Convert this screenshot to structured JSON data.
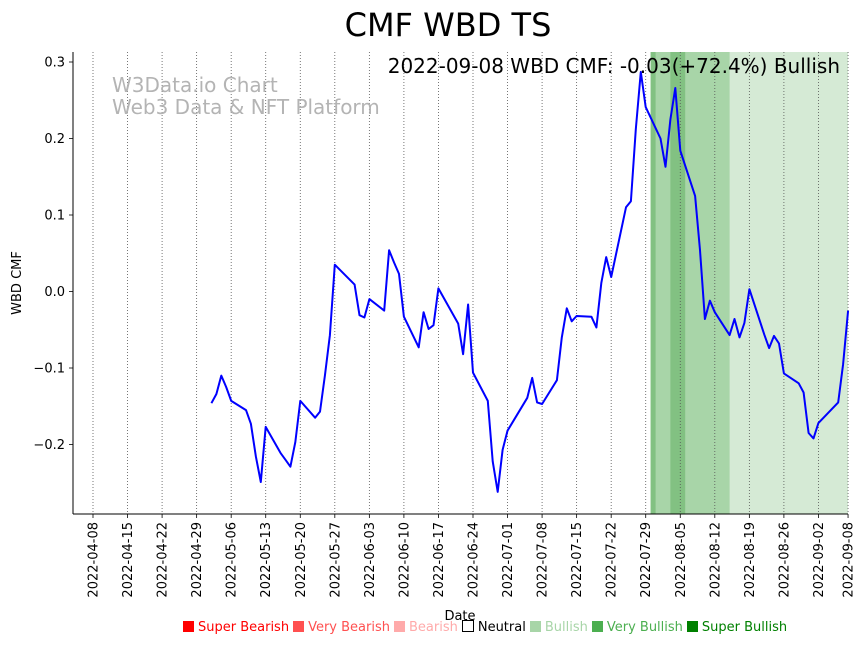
{
  "chart_data": {
    "type": "line",
    "title": "CMF WBD TS",
    "xlabel": "Date",
    "ylabel": "WBD CMF",
    "ylim": [
      -0.29,
      0.313
    ],
    "xlim": [
      "2022-04-04",
      "2022-09-08"
    ],
    "grid": "vertical dotted at x ticks",
    "annotation": "2022-09-08 WBD CMF: -0.03(+72.4%) Bullish",
    "watermark": [
      "W3Data.io Chart",
      "Web3 Data & NFT Platform"
    ],
    "yticks": [
      0.3,
      0.2,
      0.1,
      0.0,
      -0.1,
      -0.2
    ],
    "ytick_labels": [
      "0.3",
      "0.2",
      "0.1",
      "0.0",
      "−0.1",
      "−0.2"
    ],
    "xticks": [
      "2022-04-08",
      "2022-04-15",
      "2022-04-22",
      "2022-04-29",
      "2022-05-06",
      "2022-05-13",
      "2022-05-20",
      "2022-05-27",
      "2022-06-03",
      "2022-06-10",
      "2022-06-17",
      "2022-06-24",
      "2022-07-01",
      "2022-07-08",
      "2022-07-15",
      "2022-07-22",
      "2022-07-29",
      "2022-08-05",
      "2022-08-12",
      "2022-08-19",
      "2022-08-26",
      "2022-09-02",
      "2022-09-08"
    ],
    "series": [
      {
        "name": "WBD CMF",
        "color": "#0000ff",
        "points": [
          [
            "2022-05-02",
            -0.146
          ],
          [
            "2022-05-03",
            -0.134
          ],
          [
            "2022-05-04",
            -0.11
          ],
          [
            "2022-05-05",
            -0.125
          ],
          [
            "2022-05-06",
            -0.143
          ],
          [
            "2022-05-09",
            -0.155
          ],
          [
            "2022-05-10",
            -0.173
          ],
          [
            "2022-05-11",
            -0.216
          ],
          [
            "2022-05-12",
            -0.249
          ],
          [
            "2022-05-13",
            -0.177
          ],
          [
            "2022-05-16",
            -0.211
          ],
          [
            "2022-05-17",
            -0.22
          ],
          [
            "2022-05-18",
            -0.229
          ],
          [
            "2022-05-19",
            -0.197
          ],
          [
            "2022-05-20",
            -0.143
          ],
          [
            "2022-05-23",
            -0.165
          ],
          [
            "2022-05-24",
            -0.157
          ],
          [
            "2022-05-25",
            -0.11
          ],
          [
            "2022-05-26",
            -0.057
          ],
          [
            "2022-05-27",
            0.035
          ],
          [
            "2022-05-31",
            0.009
          ],
          [
            "2022-06-01",
            -0.031
          ],
          [
            "2022-06-02",
            -0.034
          ],
          [
            "2022-06-03",
            -0.01
          ],
          [
            "2022-06-06",
            -0.025
          ],
          [
            "2022-06-07",
            0.054
          ],
          [
            "2022-06-08",
            0.038
          ],
          [
            "2022-06-09",
            0.023
          ],
          [
            "2022-06-10",
            -0.033
          ],
          [
            "2022-06-13",
            -0.073
          ],
          [
            "2022-06-14",
            -0.027
          ],
          [
            "2022-06-15",
            -0.049
          ],
          [
            "2022-06-16",
            -0.044
          ],
          [
            "2022-06-17",
            0.004
          ],
          [
            "2022-06-21",
            -0.042
          ],
          [
            "2022-06-22",
            -0.082
          ],
          [
            "2022-06-23",
            -0.017
          ],
          [
            "2022-06-24",
            -0.106
          ],
          [
            "2022-06-27",
            -0.143
          ],
          [
            "2022-06-28",
            -0.222
          ],
          [
            "2022-06-29",
            -0.262
          ],
          [
            "2022-06-30",
            -0.207
          ],
          [
            "2022-07-01",
            -0.182
          ],
          [
            "2022-07-05",
            -0.139
          ],
          [
            "2022-07-06",
            -0.113
          ],
          [
            "2022-07-07",
            -0.145
          ],
          [
            "2022-07-08",
            -0.147
          ],
          [
            "2022-07-11",
            -0.116
          ],
          [
            "2022-07-12",
            -0.06
          ],
          [
            "2022-07-13",
            -0.022
          ],
          [
            "2022-07-14",
            -0.039
          ],
          [
            "2022-07-15",
            -0.032
          ],
          [
            "2022-07-18",
            -0.033
          ],
          [
            "2022-07-19",
            -0.047
          ],
          [
            "2022-07-20",
            0.011
          ],
          [
            "2022-07-21",
            0.045
          ],
          [
            "2022-07-22",
            0.019
          ],
          [
            "2022-07-25",
            0.11
          ],
          [
            "2022-07-26",
            0.118
          ],
          [
            "2022-07-27",
            0.212
          ],
          [
            "2022-07-28",
            0.287
          ],
          [
            "2022-07-29",
            0.241
          ],
          [
            "2022-08-01",
            0.2
          ],
          [
            "2022-08-02",
            0.163
          ],
          [
            "2022-08-03",
            0.225
          ],
          [
            "2022-08-04",
            0.266
          ],
          [
            "2022-08-05",
            0.184
          ],
          [
            "2022-08-08",
            0.125
          ],
          [
            "2022-08-09",
            0.054
          ],
          [
            "2022-08-10",
            -0.036
          ],
          [
            "2022-08-11",
            -0.012
          ],
          [
            "2022-08-12",
            -0.027
          ],
          [
            "2022-08-15",
            -0.057
          ],
          [
            "2022-08-16",
            -0.036
          ],
          [
            "2022-08-17",
            -0.06
          ],
          [
            "2022-08-18",
            -0.041
          ],
          [
            "2022-08-19",
            0.003
          ],
          [
            "2022-08-22",
            -0.056
          ],
          [
            "2022-08-23",
            -0.074
          ],
          [
            "2022-08-24",
            -0.058
          ],
          [
            "2022-08-25",
            -0.068
          ],
          [
            "2022-08-26",
            -0.107
          ],
          [
            "2022-08-29",
            -0.12
          ],
          [
            "2022-08-30",
            -0.132
          ],
          [
            "2022-08-31",
            -0.185
          ],
          [
            "2022-09-01",
            -0.192
          ],
          [
            "2022-09-02",
            -0.172
          ],
          [
            "2022-09-06",
            -0.145
          ],
          [
            "2022-09-07",
            -0.095
          ],
          [
            "2022-09-08",
            -0.025
          ]
        ]
      }
    ],
    "bands": [
      {
        "start": "2022-07-30",
        "end": "2022-09-08",
        "color": "#d5ead5"
      },
      {
        "start": "2022-07-30",
        "end": "2022-08-15",
        "color": "#a8d5a8"
      },
      {
        "start": "2022-07-30",
        "end": "2022-07-31",
        "color": "#82c182"
      },
      {
        "start": "2022-08-03",
        "end": "2022-08-06",
        "color": "#82c182"
      }
    ],
    "legend": {
      "placement": "bottom",
      "entries": [
        {
          "label": "Super Bearish",
          "color": "#ff0000"
        },
        {
          "label": "Very Bearish",
          "color": "#ff5050"
        },
        {
          "label": "Bearish",
          "color": "#ffaaaa"
        },
        {
          "label": "Neutral",
          "color": "#ffffff"
        },
        {
          "label": "Bullish",
          "color": "#a8d5a8"
        },
        {
          "label": "Very Bullish",
          "color": "#4caf50"
        },
        {
          "label": "Super Bullish",
          "color": "#008000"
        }
      ]
    }
  }
}
